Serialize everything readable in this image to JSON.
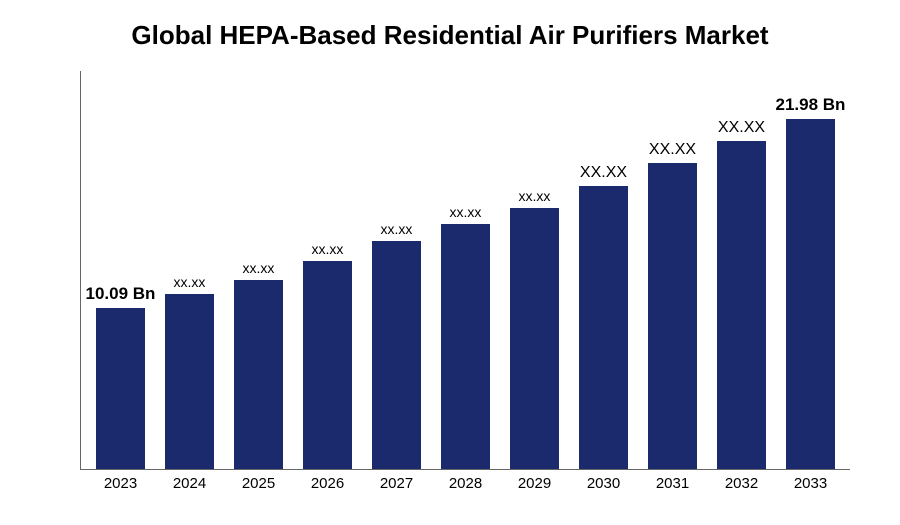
{
  "chart": {
    "type": "bar",
    "title": "Global HEPA-Based Residential Air Purifiers Market",
    "title_fontsize": 26,
    "title_fontweight": "bold",
    "title_color": "#000000",
    "background_color": "#ffffff",
    "axis_color": "#666666",
    "bar_color": "#1a2a6c",
    "bar_width_pct": 70,
    "categories": [
      "2023",
      "2024",
      "2025",
      "2026",
      "2027",
      "2028",
      "2029",
      "2030",
      "2031",
      "2032",
      "2033"
    ],
    "values": [
      10.09,
      11.0,
      11.9,
      13.1,
      14.3,
      15.4,
      16.4,
      17.8,
      19.2,
      20.6,
      21.98
    ],
    "value_labels": [
      "10.09 Bn",
      "xx.xx",
      "xx.xx",
      "xx.xx",
      "xx.xx",
      "xx.xx",
      "xx.xx",
      "XX.XX",
      "XX.XX",
      "XX.XX",
      "21.98 Bn"
    ],
    "value_label_fontweights": [
      "bold",
      "normal",
      "normal",
      "normal",
      "normal",
      "normal",
      "normal",
      "normal",
      "normal",
      "normal",
      "bold"
    ],
    "value_label_fontsizes": [
      17,
      14,
      14,
      14,
      14,
      14,
      14,
      16,
      16,
      16,
      17
    ],
    "category_label_fontsize": 15,
    "category_label_color": "#000000",
    "value_label_color": "#000000",
    "ylim_max": 25
  }
}
